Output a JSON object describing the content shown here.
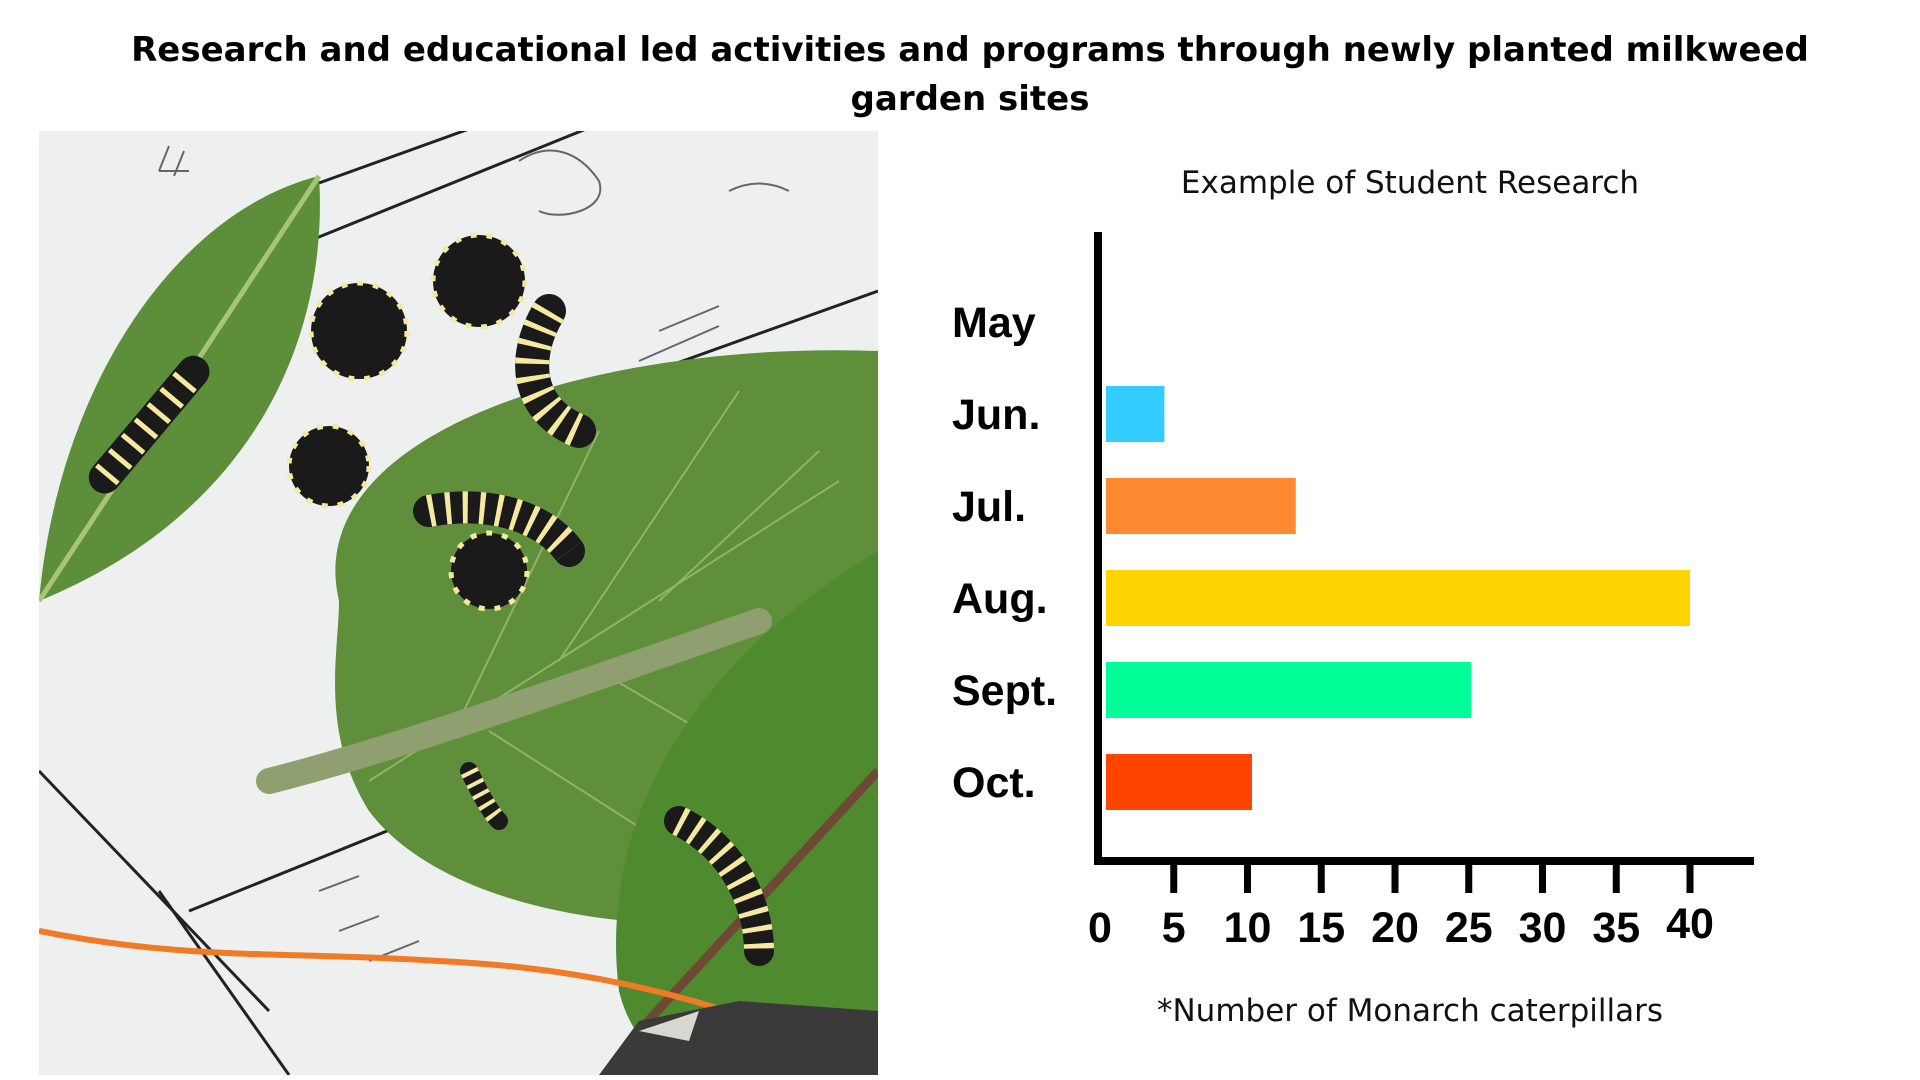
{
  "page": {
    "title": "Research and educational led activities and programs through newly planted milkweed garden sites"
  },
  "photo": {
    "description_icon": "monarch-caterpillars-on-milkweed-photo"
  },
  "chart_data": {
    "type": "bar",
    "orientation": "horizontal",
    "title": "Example of Student Research",
    "footnote": "*Number of Monarch caterpillars",
    "xlabel": "",
    "ylabel": "",
    "categories": [
      "May",
      "Jun.",
      "Jul.",
      "Aug.",
      "Sept.",
      "Oct."
    ],
    "values": [
      0,
      4,
      13,
      40,
      25,
      10
    ],
    "colors": [
      "#ffffff",
      "#33ccff",
      "#ff8833",
      "#ffd500",
      "#00ff99",
      "#ff4400"
    ],
    "xticks": [
      "0",
      "5",
      "10",
      "15",
      "20",
      "25",
      "30",
      "35",
      "40"
    ],
    "xlim": [
      0,
      45
    ],
    "grid": false,
    "legend": "none"
  }
}
